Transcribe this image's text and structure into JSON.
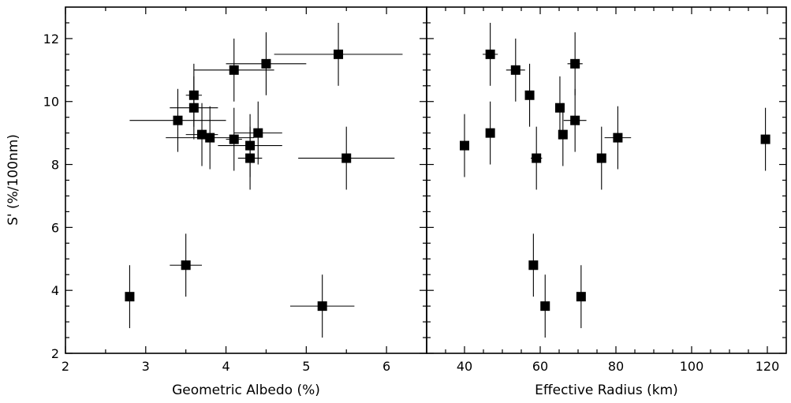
{
  "chart_data": [
    {
      "type": "scatter",
      "xlabel": "Geometric Albedo (%)",
      "ylabel": "S' (%/100nm)",
      "xlim": [
        2,
        6.5
      ],
      "ylim": [
        2,
        13
      ],
      "xticks": [
        2,
        3,
        4,
        5,
        6
      ],
      "yticks": [
        2,
        4,
        6,
        8,
        10,
        12
      ],
      "grid": false,
      "points": [
        {
          "x": 2.8,
          "y": 3.8,
          "xerr": 0.05,
          "yerr": 1.0
        },
        {
          "x": 3.4,
          "y": 9.4,
          "xerr": 0.6,
          "yerr": 1.0
        },
        {
          "x": 3.5,
          "y": 4.8,
          "xerr": 0.2,
          "yerr": 1.0
        },
        {
          "x": 3.6,
          "y": 10.2,
          "xerr": 0.1,
          "yerr": 1.0
        },
        {
          "x": 3.6,
          "y": 9.8,
          "xerr": 0.3,
          "yerr": 1.0
        },
        {
          "x": 3.7,
          "y": 8.95,
          "xerr": 0.2,
          "yerr": 1.0
        },
        {
          "x": 3.8,
          "y": 8.85,
          "xerr": 0.55,
          "yerr": 1.0
        },
        {
          "x": 4.1,
          "y": 11.0,
          "xerr": 0.5,
          "yerr": 1.0
        },
        {
          "x": 4.1,
          "y": 8.8,
          "xerr": 0.1,
          "yerr": 1.0
        },
        {
          "x": 4.3,
          "y": 8.6,
          "xerr": 0.4,
          "yerr": 1.0
        },
        {
          "x": 4.3,
          "y": 8.2,
          "xerr": 0.15,
          "yerr": 1.0
        },
        {
          "x": 4.4,
          "y": 9.0,
          "xerr": 0.3,
          "yerr": 1.0
        },
        {
          "x": 4.5,
          "y": 11.2,
          "xerr": 0.5,
          "yerr": 1.0
        },
        {
          "x": 5.2,
          "y": 3.5,
          "xerr": 0.4,
          "yerr": 1.0
        },
        {
          "x": 5.4,
          "y": 11.5,
          "xerr": 0.8,
          "yerr": 1.0
        },
        {
          "x": 5.5,
          "y": 8.2,
          "xerr": 0.6,
          "yerr": 1.0
        }
      ]
    },
    {
      "type": "scatter",
      "xlabel": "Effective Radius (km)",
      "ylabel": "",
      "xlim": [
        30,
        125
      ],
      "ylim": [
        2,
        13
      ],
      "xticks": [
        40,
        60,
        80,
        100,
        120
      ],
      "yticks": [
        2,
        4,
        6,
        8,
        10,
        12
      ],
      "grid": false,
      "points": [
        {
          "x": 40,
          "y": 8.6,
          "xerr": 0,
          "yerr": 1.0
        },
        {
          "x": 46.8,
          "y": 9.0,
          "xerr": 0,
          "yerr": 1.0
        },
        {
          "x": 46.8,
          "y": 11.5,
          "xerr": 2.0,
          "yerr": 1.0
        },
        {
          "x": 53.5,
          "y": 11.0,
          "xerr": 2.5,
          "yerr": 1.0
        },
        {
          "x": 57.2,
          "y": 10.2,
          "xerr": 1.0,
          "yerr": 1.0
        },
        {
          "x": 58.2,
          "y": 4.8,
          "xerr": 0,
          "yerr": 1.0
        },
        {
          "x": 59.0,
          "y": 8.2,
          "xerr": 1.5,
          "yerr": 1.0
        },
        {
          "x": 61.3,
          "y": 3.5,
          "xerr": 1.0,
          "yerr": 1.0
        },
        {
          "x": 65.2,
          "y": 9.8,
          "xerr": 1.0,
          "yerr": 1.0
        },
        {
          "x": 66.0,
          "y": 8.95,
          "xerr": 0,
          "yerr": 1.0
        },
        {
          "x": 69.2,
          "y": 11.2,
          "xerr": 2.0,
          "yerr": 1.0
        },
        {
          "x": 69.2,
          "y": 9.4,
          "xerr": 3.0,
          "yerr": 1.0
        },
        {
          "x": 70.8,
          "y": 3.8,
          "xerr": 0,
          "yerr": 1.0
        },
        {
          "x": 76.2,
          "y": 8.2,
          "xerr": 0,
          "yerr": 1.0
        },
        {
          "x": 80.5,
          "y": 8.85,
          "xerr": 3.5,
          "yerr": 1.0
        },
        {
          "x": 119.5,
          "y": 8.8,
          "xerr": 0,
          "yerr": 1.0
        }
      ]
    }
  ]
}
